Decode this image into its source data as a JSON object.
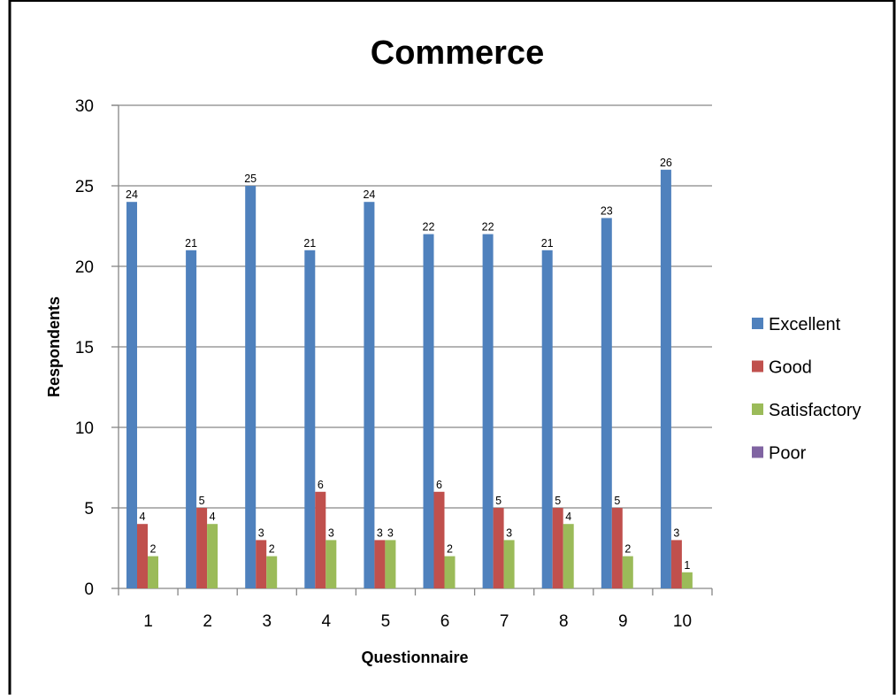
{
  "chart_data": {
    "type": "bar",
    "title": "Commerce",
    "xlabel": "Questionnaire",
    "ylabel": "Respondents",
    "categories": [
      "1",
      "2",
      "3",
      "4",
      "5",
      "6",
      "7",
      "8",
      "9",
      "10"
    ],
    "ylim": [
      0,
      30
    ],
    "yticks": [
      0,
      5,
      10,
      15,
      20,
      25,
      30
    ],
    "grid": true,
    "legend_position": "right",
    "series": [
      {
        "name": "Excellent",
        "color": "#4f81bd",
        "values": [
          24,
          21,
          25,
          21,
          24,
          22,
          22,
          21,
          23,
          26
        ]
      },
      {
        "name": "Good",
        "color": "#c0504d",
        "values": [
          4,
          5,
          3,
          6,
          3,
          6,
          5,
          5,
          5,
          3
        ]
      },
      {
        "name": "Satisfactory",
        "color": "#9bbb59",
        "values": [
          2,
          4,
          2,
          3,
          3,
          2,
          3,
          4,
          2,
          1
        ]
      },
      {
        "name": "Poor",
        "color": "#8064a2",
        "values": [
          0,
          0,
          0,
          0,
          0,
          0,
          0,
          0,
          0,
          0
        ]
      }
    ],
    "data_labels": true,
    "hide_zero_labels": true
  }
}
